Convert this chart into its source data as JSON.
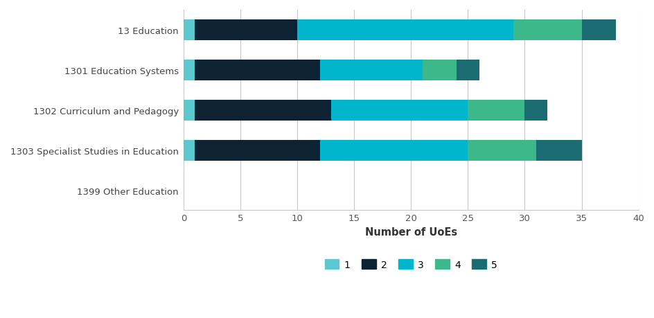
{
  "categories": [
    "13 Education",
    "1301 Education Systems",
    "1302 Curriculum and Pedagogy",
    "1303 Specialist Studies in Education",
    "1399 Other Education"
  ],
  "series": {
    "1": [
      1,
      1,
      1,
      1,
      0
    ],
    "2": [
      9,
      11,
      12,
      11,
      0
    ],
    "3": [
      19,
      9,
      12,
      13,
      0
    ],
    "4": [
      6,
      3,
      5,
      6,
      0
    ],
    "5": [
      3,
      2,
      2,
      4,
      0
    ]
  },
  "colors": {
    "1": "#5bc8d0",
    "2": "#0d2233",
    "3": "#00b5cc",
    "4": "#3cb88a",
    "5": "#1a6b72"
  },
  "xlabel": "Number of UoEs",
  "xlim": [
    0,
    40
  ],
  "xticks": [
    0,
    5,
    10,
    15,
    20,
    25,
    30,
    35,
    40
  ],
  "bar_height": 0.52,
  "grid_color": "#c8c8c8",
  "background_color": "#ffffff",
  "legend_labels": [
    "1",
    "2",
    "3",
    "4",
    "5"
  ],
  "figsize": [
    9.45,
    4.6
  ],
  "dpi": 100
}
